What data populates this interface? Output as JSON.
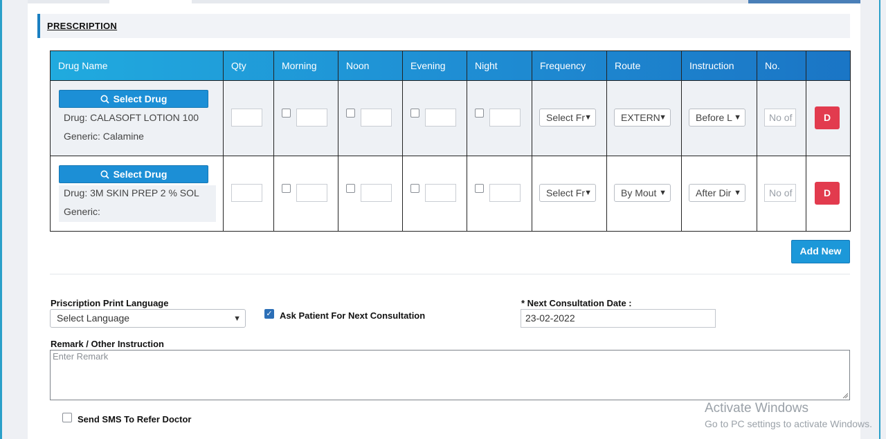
{
  "section": {
    "title": "PRESCRIPTION"
  },
  "table": {
    "headers": [
      "Drug Name",
      "Qty",
      "Morning",
      "Noon",
      "Evening",
      "Night",
      "Frequency",
      "Route",
      "Instruction",
      "No.",
      ""
    ],
    "rows": [
      {
        "select_drug_label": "Select Drug",
        "drug": "Drug: CALASOFT LOTION 100",
        "generic": "Generic: Calamine",
        "frequency": "Select Fr",
        "route": "EXTERN",
        "instruction": "Before L",
        "no_placeholder": "No of",
        "delete_label": "D"
      },
      {
        "select_drug_label": "Select Drug",
        "drug": "Drug: 3M SKIN PREP 2 % SOL",
        "generic": "Generic:",
        "frequency": "Select Fr",
        "route": "By Mout",
        "instruction": "After Dir",
        "no_placeholder": "No of",
        "delete_label": "D"
      }
    ]
  },
  "add_new_label": "Add New",
  "form": {
    "print_language_label": "Priscription Print Language",
    "print_language_value": "Select Language",
    "ask_next_label": "Ask Patient For Next Consultation",
    "next_date_label": "* Next Consultation Date :",
    "next_date_value": "23-02-2022",
    "remark_label": "Remark / Other Instruction",
    "remark_placeholder": "Enter Remark",
    "sms_label": "Send SMS To Refer Doctor"
  },
  "watermark": {
    "line1": "Activate Windows",
    "line2": "Go to PC settings to activate Windows."
  },
  "colors": {
    "header_gradient_start": "#20aee0",
    "header_gradient_end": "#1a73c4",
    "primary_button": "#1c8fd6",
    "delete_button": "#e23b4e"
  }
}
